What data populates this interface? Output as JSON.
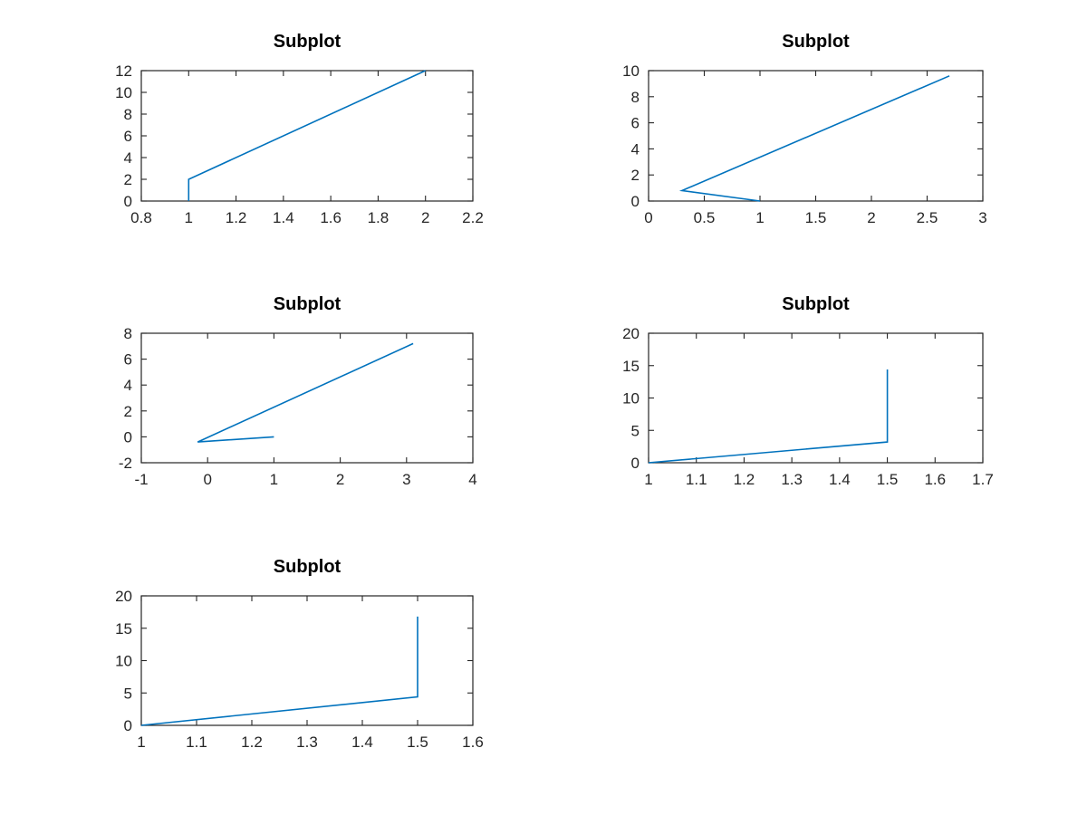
{
  "chart_data": [
    {
      "type": "line",
      "title": "Subplot",
      "xlabel": "",
      "ylabel": "",
      "xlim": [
        0.8,
        2.2
      ],
      "ylim": [
        0,
        12
      ],
      "xticks": [
        0.8,
        1,
        1.2,
        1.4,
        1.6,
        1.8,
        2,
        2.2
      ],
      "xtick_labels": [
        "0.8",
        "1",
        "1.2",
        "1.4",
        "1.6",
        "1.8",
        "2",
        "2.2"
      ],
      "yticks": [
        0,
        2,
        4,
        6,
        8,
        10,
        12
      ],
      "ytick_labels": [
        "0",
        "2",
        "4",
        "6",
        "8",
        "10",
        "12"
      ],
      "series": [
        {
          "color": "#0072bd",
          "x": [
            1,
            1,
            2
          ],
          "y": [
            0,
            2,
            12
          ]
        }
      ]
    },
    {
      "type": "line",
      "title": "Subplot",
      "xlabel": "",
      "ylabel": "",
      "xlim": [
        0,
        3
      ],
      "ylim": [
        0,
        10
      ],
      "xticks": [
        0,
        0.5,
        1,
        1.5,
        2,
        2.5,
        3
      ],
      "xtick_labels": [
        "0",
        "0.5",
        "1",
        "1.5",
        "2",
        "2.5",
        "3"
      ],
      "yticks": [
        0,
        2,
        4,
        6,
        8,
        10
      ],
      "ytick_labels": [
        "0",
        "2",
        "4",
        "6",
        "8",
        "10"
      ],
      "series": [
        {
          "color": "#0072bd",
          "x": [
            1,
            0.3,
            2.7
          ],
          "y": [
            0,
            0.8,
            9.6
          ]
        }
      ]
    },
    {
      "type": "line",
      "title": "Subplot",
      "xlabel": "",
      "ylabel": "",
      "xlim": [
        -1,
        4
      ],
      "ylim": [
        -2,
        8
      ],
      "xticks": [
        -1,
        0,
        1,
        2,
        3,
        4
      ],
      "xtick_labels": [
        "-1",
        "0",
        "1",
        "2",
        "3",
        "4"
      ],
      "yticks": [
        -2,
        0,
        2,
        4,
        6,
        8
      ],
      "ytick_labels": [
        "-2",
        "0",
        "2",
        "4",
        "6",
        "8"
      ],
      "series": [
        {
          "color": "#0072bd",
          "x": [
            1,
            -0.15,
            3.1
          ],
          "y": [
            0,
            -0.4,
            7.2
          ]
        }
      ]
    },
    {
      "type": "line",
      "title": "Subplot",
      "xlabel": "",
      "ylabel": "",
      "xlim": [
        1,
        1.7
      ],
      "ylim": [
        0,
        20
      ],
      "xticks": [
        1,
        1.1,
        1.2,
        1.3,
        1.4,
        1.5,
        1.6,
        1.7
      ],
      "xtick_labels": [
        "1",
        "1.1",
        "1.2",
        "1.3",
        "1.4",
        "1.5",
        "1.6",
        "1.7"
      ],
      "yticks": [
        0,
        5,
        10,
        15,
        20
      ],
      "ytick_labels": [
        "0",
        "5",
        "10",
        "15",
        "20"
      ],
      "series": [
        {
          "color": "#0072bd",
          "x": [
            1,
            1.5,
            1.5
          ],
          "y": [
            0,
            3.2,
            14.4
          ]
        }
      ]
    },
    {
      "type": "line",
      "title": "Subplot",
      "xlabel": "",
      "ylabel": "",
      "xlim": [
        1,
        1.6
      ],
      "ylim": [
        0,
        20
      ],
      "xticks": [
        1,
        1.1,
        1.2,
        1.3,
        1.4,
        1.5,
        1.6
      ],
      "xtick_labels": [
        "1",
        "1.1",
        "1.2",
        "1.3",
        "1.4",
        "1.5",
        "1.6"
      ],
      "yticks": [
        0,
        5,
        10,
        15,
        20
      ],
      "ytick_labels": [
        "0",
        "5",
        "10",
        "15",
        "20"
      ],
      "series": [
        {
          "color": "#0072bd",
          "x": [
            1,
            1.5,
            1.5
          ],
          "y": [
            0,
            4.4,
            16.8
          ]
        }
      ]
    }
  ]
}
